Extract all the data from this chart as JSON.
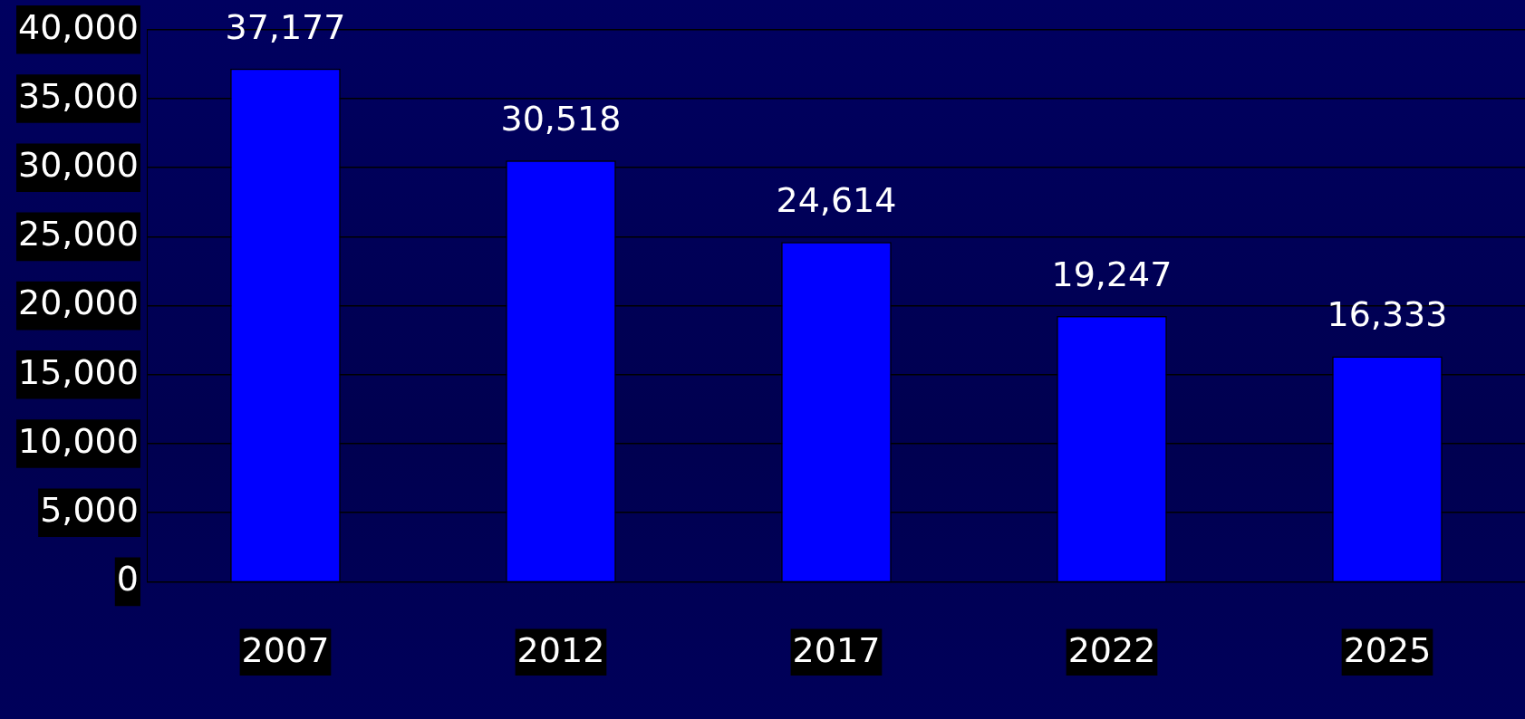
{
  "chart_data": {
    "type": "bar",
    "categories": [
      "2007",
      "2012",
      "2017",
      "2022",
      "2025"
    ],
    "values": [
      37177,
      30518,
      24614,
      19247,
      16333
    ],
    "color": "#0000ff",
    "ylim": [
      0,
      40000
    ],
    "yticks": [
      {
        "value": 0,
        "label": "0"
      },
      {
        "value": 5000,
        "label": "5,000"
      },
      {
        "value": 10000,
        "label": "10,000"
      },
      {
        "value": 15000,
        "label": "15,000"
      },
      {
        "value": 20000,
        "label": "20,000"
      },
      {
        "value": 25000,
        "label": "25,000"
      },
      {
        "value": 30000,
        "label": "30,000"
      },
      {
        "value": 35000,
        "label": "35,000"
      },
      {
        "value": 40000,
        "label": "40,000"
      }
    ],
    "value_labels": [
      "37,177",
      "30,518",
      "24,614",
      "19,247",
      "16,333"
    ],
    "grid": "y",
    "legend": false
  }
}
